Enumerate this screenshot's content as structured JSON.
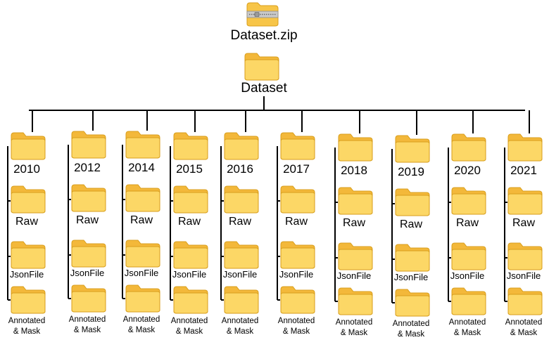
{
  "zip_label": "Dataset.zip",
  "root_label": "Dataset",
  "colors": {
    "folder_body": "#f9c94a",
    "folder_tab": "#f3b83a",
    "folder_front": "#fcd766",
    "folder_stroke": "#d89e1c",
    "connector": "#000000"
  },
  "icons": {
    "zip": "zip-archive-icon",
    "folder": "folder-icon"
  },
  "years": [
    "2010",
    "2012",
    "2014",
    "2015",
    "2016",
    "2017",
    "2018",
    "2019",
    "2020",
    "2021"
  ],
  "subfolders": {
    "raw": "Raw",
    "json": "JsonFile",
    "annotated_line1": "Annotated",
    "annotated_line2": "& Mask"
  }
}
